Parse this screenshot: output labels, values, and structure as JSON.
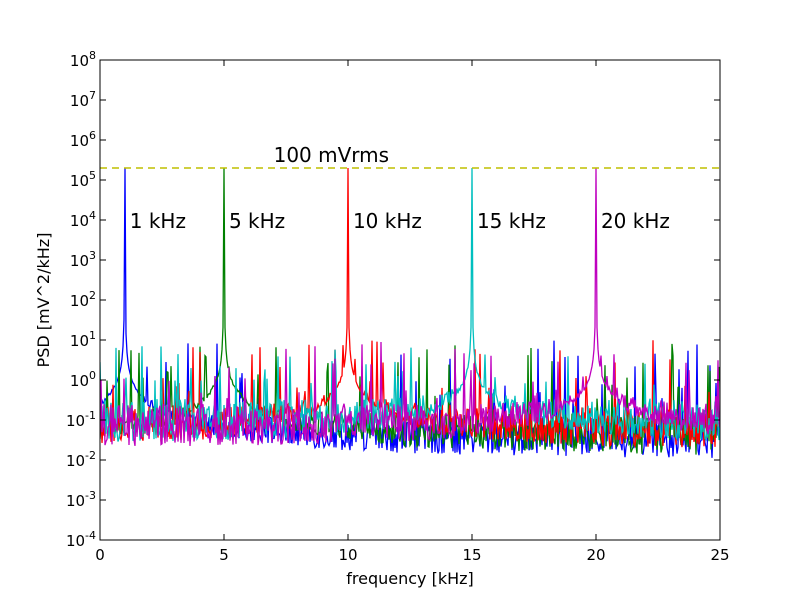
{
  "chart_data": {
    "type": "line",
    "xlabel": "frequency [kHz]",
    "ylabel": "PSD [mV^2/kHz]",
    "xlim": [
      0,
      25
    ],
    "ylim": [
      0.0001,
      100000000
    ],
    "yscale": "log",
    "xticks": [
      "0",
      "5",
      "10",
      "15",
      "20",
      "25"
    ],
    "yticks": [
      {
        "value": 0.0001,
        "base": "10",
        "exp": "-4"
      },
      {
        "value": 0.001,
        "base": "10",
        "exp": "-3"
      },
      {
        "value": 0.01,
        "base": "10",
        "exp": "-2"
      },
      {
        "value": 0.1,
        "base": "10",
        "exp": "-1"
      },
      {
        "value": 1,
        "base": "10",
        "exp": "0"
      },
      {
        "value": 10,
        "base": "10",
        "exp": "1"
      },
      {
        "value": 100,
        "base": "10",
        "exp": "2"
      },
      {
        "value": 1000,
        "base": "10",
        "exp": "3"
      },
      {
        "value": 10000,
        "base": "10",
        "exp": "4"
      },
      {
        "value": 100000,
        "base": "10",
        "exp": "5"
      },
      {
        "value": 1000000,
        "base": "10",
        "exp": "6"
      },
      {
        "value": 10000000,
        "base": "10",
        "exp": "7"
      },
      {
        "value": 100000000,
        "base": "10",
        "exp": "8"
      }
    ],
    "grid": false,
    "series": [
      {
        "color": "#0000ff",
        "peak_x": 1,
        "peak_y": 200000,
        "floor": 0.035,
        "label": "1 kHz",
        "label_x": 1.2
      },
      {
        "color": "#008000",
        "peak_x": 5,
        "peak_y": 200000,
        "floor": 0.04,
        "label": "5 kHz",
        "label_x": 5.2
      },
      {
        "color": "#ff0000",
        "peak_x": 10,
        "peak_y": 200000,
        "floor": 0.06,
        "label": "10 kHz",
        "label_x": 10.2
      },
      {
        "color": "#00bfbf",
        "peak_x": 15,
        "peak_y": 200000,
        "floor": 0.09,
        "label": "15 kHz",
        "label_x": 15.2
      },
      {
        "color": "#bf00bf",
        "peak_x": 20,
        "peak_y": 200000,
        "floor": 0.07,
        "label": "20 kHz",
        "label_x": 20.2
      }
    ],
    "reference_line": {
      "y": 200000,
      "color": "#bfbf00",
      "style": "dashed",
      "label": "100 mVrms",
      "label_x": 7.0
    }
  }
}
